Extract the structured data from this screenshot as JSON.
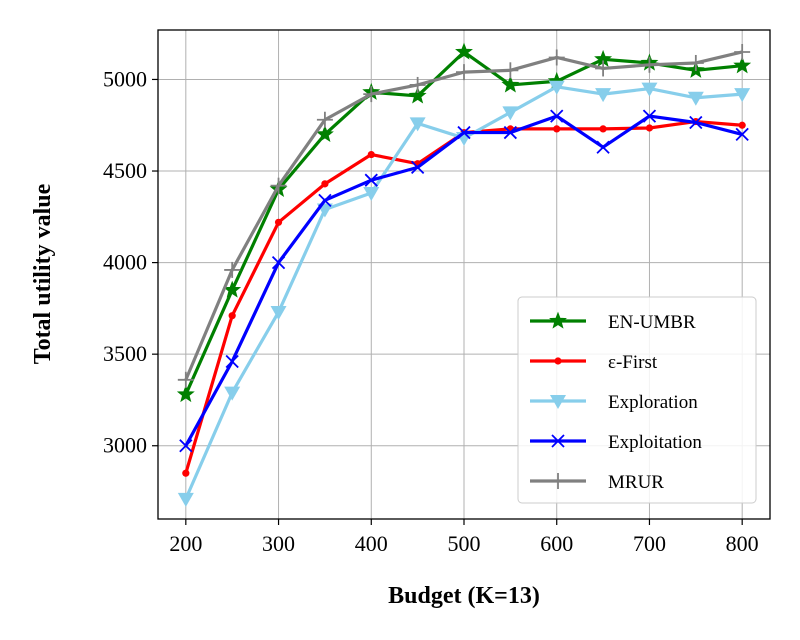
{
  "chart_data": {
    "type": "line",
    "xlabel": "Budget (K=13)",
    "ylabel": "Total utility value",
    "xlim": [
      170,
      830
    ],
    "ylim": [
      2600,
      5270
    ],
    "xticks": [
      200,
      300,
      400,
      500,
      600,
      700,
      800
    ],
    "yticks": [
      3000,
      3500,
      4000,
      4500,
      5000
    ],
    "grid": true,
    "legend_position": "bottom-right",
    "x": [
      200,
      250,
      300,
      350,
      400,
      450,
      500,
      550,
      600,
      650,
      700,
      750,
      800
    ],
    "series": [
      {
        "name": "EN-UMBR",
        "color": "#008000",
        "marker": "star",
        "values": [
          3280,
          3850,
          4400,
          4700,
          4930,
          4910,
          5150,
          4970,
          4990,
          5110,
          5090,
          5050,
          5075
        ]
      },
      {
        "name": "ε-First",
        "color": "#ff0000",
        "marker": "dot",
        "values": [
          2850,
          3710,
          4220,
          4430,
          4590,
          4540,
          4710,
          4730,
          4730,
          4730,
          4735,
          4770,
          4750
        ]
      },
      {
        "name": "Exploration",
        "color": "#87ceeb",
        "marker": "triangle-down",
        "values": [
          2710,
          3290,
          3730,
          4290,
          4380,
          4760,
          4680,
          4820,
          4960,
          4920,
          4950,
          4900,
          4920
        ]
      },
      {
        "name": "Exploitation",
        "color": "#0000ff",
        "marker": "x",
        "values": [
          3000,
          3460,
          4000,
          4340,
          4450,
          4520,
          4710,
          4710,
          4800,
          4630,
          4800,
          4765,
          4700
        ]
      },
      {
        "name": "MRUR",
        "color": "#808080",
        "marker": "plus",
        "values": [
          3360,
          3960,
          4420,
          4780,
          4920,
          4970,
          5040,
          5050,
          5120,
          5060,
          5080,
          5090,
          5150
        ]
      }
    ]
  }
}
